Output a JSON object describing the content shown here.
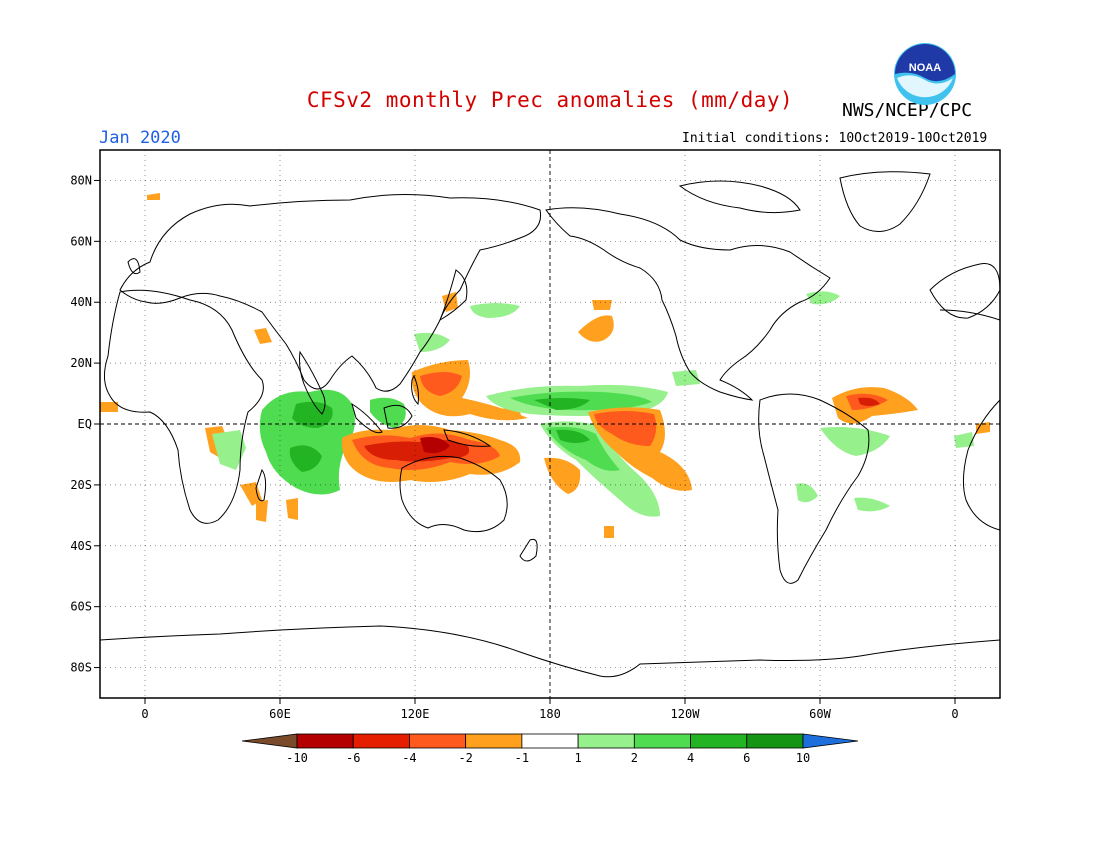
{
  "header": {
    "title": "CFSv2 monthly Prec anomalies (mm/day)",
    "agency": "NWS/NCEP/CPC",
    "month": "Jan 2020",
    "initial_conditions": "Initial conditions: 10Oct2019-10Oct2019",
    "logo_text": "NOAA"
  },
  "map": {
    "projection": "equirectangular",
    "lon_range": [
      -20,
      380
    ],
    "lat_range": [
      -90,
      90
    ],
    "lat_ticks": [
      {
        "lat": 80,
        "label": "80N"
      },
      {
        "lat": 60,
        "label": "60N"
      },
      {
        "lat": 40,
        "label": "40N"
      },
      {
        "lat": 20,
        "label": "20N"
      },
      {
        "lat": 0,
        "label": "EQ"
      },
      {
        "lat": -20,
        "label": "20S"
      },
      {
        "lat": -40,
        "label": "40S"
      },
      {
        "lat": -60,
        "label": "60S"
      },
      {
        "lat": -80,
        "label": "80S"
      }
    ],
    "lon_ticks": [
      {
        "lon": 0,
        "label": "0"
      },
      {
        "lon": 60,
        "label": "60E"
      },
      {
        "lon": 120,
        "label": "120E"
      },
      {
        "lon": 180,
        "label": "180"
      },
      {
        "lon": 240,
        "label": "120W"
      },
      {
        "lon": 300,
        "label": "60W"
      },
      {
        "lon": 360,
        "label": "0"
      }
    ],
    "colors": {
      "dry_extreme": "#8c1a00",
      "dry_strong": "#d81e05",
      "dry_moderate": "#ff5a1e",
      "dry_weak": "#ffa01e",
      "wet_weak": "#96f08c",
      "wet_moderate": "#50dc50",
      "wet_strong": "#23b423"
    }
  },
  "colorbar": {
    "levels": [
      {
        "label": "-10",
        "color": "#7a4a2a"
      },
      {
        "label": "-6",
        "color": "#b40000"
      },
      {
        "label": "-4",
        "color": "#e61e00"
      },
      {
        "label": "-2",
        "color": "#ff5a1e"
      },
      {
        "label": "-1",
        "color": "#ffa01e"
      },
      {
        "label": "1",
        "color": "#ffffff"
      },
      {
        "label": "2",
        "color": "#96f08c"
      },
      {
        "label": "4",
        "color": "#50dc50"
      },
      {
        "label": "6",
        "color": "#23b423"
      },
      {
        "label": "10",
        "color": "#149614"
      },
      {
        "label": "",
        "color": "#1e6edc"
      }
    ]
  }
}
